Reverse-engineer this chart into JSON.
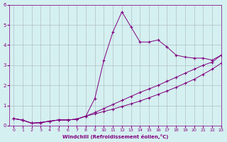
{
  "x": [
    0,
    1,
    2,
    3,
    4,
    5,
    6,
    7,
    8,
    9,
    10,
    11,
    12,
    13,
    14,
    15,
    16,
    17,
    18,
    19,
    20,
    21,
    22,
    23
  ],
  "line1": [
    0.35,
    0.27,
    0.12,
    0.15,
    0.22,
    0.28,
    0.28,
    0.32,
    0.47,
    1.35,
    3.25,
    4.65,
    5.65,
    4.9,
    4.15,
    4.15,
    4.25,
    3.9,
    3.5,
    3.4,
    3.35,
    3.35,
    3.25,
    3.5
  ],
  "line2": [
    0.35,
    0.27,
    0.12,
    0.15,
    0.22,
    0.28,
    0.28,
    0.32,
    0.47,
    0.65,
    0.85,
    1.05,
    1.25,
    1.45,
    1.65,
    1.82,
    2.0,
    2.2,
    2.4,
    2.6,
    2.8,
    3.0,
    3.15,
    3.5
  ],
  "line3": [
    0.35,
    0.27,
    0.12,
    0.15,
    0.22,
    0.28,
    0.28,
    0.32,
    0.47,
    0.58,
    0.7,
    0.82,
    0.95,
    1.08,
    1.22,
    1.38,
    1.55,
    1.72,
    1.9,
    2.1,
    2.3,
    2.55,
    2.8,
    3.1
  ],
  "background_color": "#d5f0f0",
  "line_color": "#800080",
  "grid_color": "#b0c0c8",
  "xlabel": "Windchill (Refroidissement éolien,°C)",
  "xlim": [
    -0.5,
    23
  ],
  "ylim": [
    0,
    6
  ],
  "yticks": [
    0,
    1,
    2,
    3,
    4,
    5,
    6
  ],
  "xticks": [
    0,
    1,
    2,
    3,
    4,
    5,
    6,
    7,
    8,
    9,
    10,
    11,
    12,
    13,
    14,
    15,
    16,
    17,
    18,
    19,
    20,
    21,
    22,
    23
  ],
  "xlabel_color": "#800080",
  "tick_color": "#800080"
}
